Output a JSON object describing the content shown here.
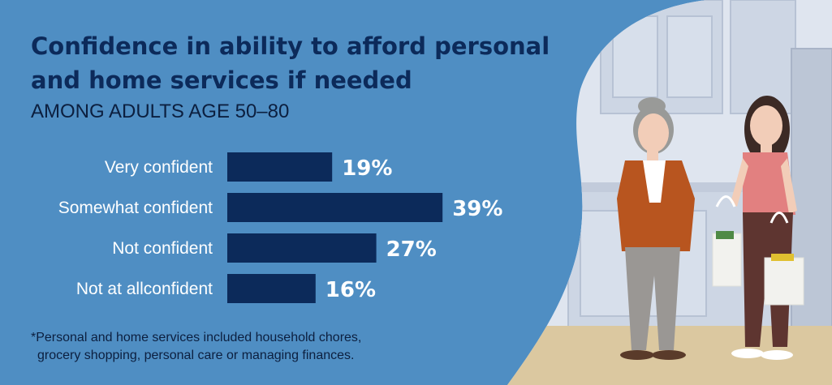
{
  "title": "Confidence in ability to afford personal and home services if needed",
  "subtitle": "AMONG ADULTS AGE 50–80",
  "footnote": {
    "line1": "*Personal and home services included household chores,",
    "line2": "grocery shopping, personal care or managing finances."
  },
  "colors": {
    "background": "#4f8ec3",
    "bar": "#0c2a5a",
    "title": "#0c2a5a",
    "label": "#ffffff"
  },
  "illustration": {
    "icons": [
      "older-woman-icon",
      "younger-woman-icon",
      "grocery-bag-icon",
      "kitchen-cabinets-icon"
    ]
  },
  "chart_data": {
    "type": "bar",
    "orientation": "horizontal",
    "categories": [
      "Very confident",
      "Somewhat confident",
      "Not confident",
      "Not at allconfident"
    ],
    "values": [
      19,
      39,
      27,
      16
    ],
    "value_labels": [
      "19%",
      "39%",
      "27%",
      "16%"
    ],
    "unit": "%",
    "xlim": [
      0,
      100
    ],
    "grid": false,
    "legend": "none"
  }
}
